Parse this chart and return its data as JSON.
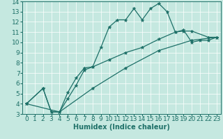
{
  "xlabel": "Humidex (Indice chaleur)",
  "xlim": [
    -0.5,
    23.5
  ],
  "ylim": [
    3,
    14
  ],
  "xticks": [
    0,
    1,
    2,
    3,
    4,
    5,
    6,
    7,
    8,
    9,
    10,
    11,
    12,
    13,
    14,
    15,
    16,
    17,
    18,
    19,
    20,
    21,
    22,
    23
  ],
  "yticks": [
    3,
    4,
    5,
    6,
    7,
    8,
    9,
    10,
    11,
    12,
    13,
    14
  ],
  "bg_color": "#c5e8e0",
  "line_color": "#1e7068",
  "grid_color": "#aad5cc",
  "series": [
    {
      "x": [
        0,
        2,
        3,
        4,
        5,
        6,
        7,
        8,
        9,
        10,
        11,
        12,
        13,
        14,
        15,
        16,
        17,
        18,
        19,
        20,
        21,
        22,
        23
      ],
      "y": [
        4.0,
        5.5,
        3.2,
        3.2,
        5.1,
        6.5,
        7.5,
        7.6,
        9.5,
        11.5,
        12.2,
        12.2,
        13.3,
        12.2,
        13.3,
        13.8,
        13.0,
        11.0,
        11.2,
        10.0,
        10.2,
        10.2,
        10.5
      ]
    },
    {
      "x": [
        0,
        2,
        3,
        4,
        5,
        6,
        7,
        8,
        10,
        12,
        14,
        16,
        18,
        19,
        20,
        22,
        23
      ],
      "y": [
        4.0,
        5.5,
        3.2,
        3.2,
        4.5,
        5.8,
        7.3,
        7.6,
        8.3,
        9.0,
        9.5,
        10.3,
        11.0,
        11.1,
        11.1,
        10.5,
        10.5
      ]
    },
    {
      "x": [
        0,
        4,
        8,
        12,
        16,
        20,
        23
      ],
      "y": [
        4.0,
        3.2,
        5.5,
        7.5,
        9.2,
        10.2,
        10.5
      ]
    }
  ],
  "marker": "*",
  "markersize": 3.5,
  "linewidth": 0.9,
  "font_size_xlabel": 7,
  "font_size_ticks": 6.5
}
